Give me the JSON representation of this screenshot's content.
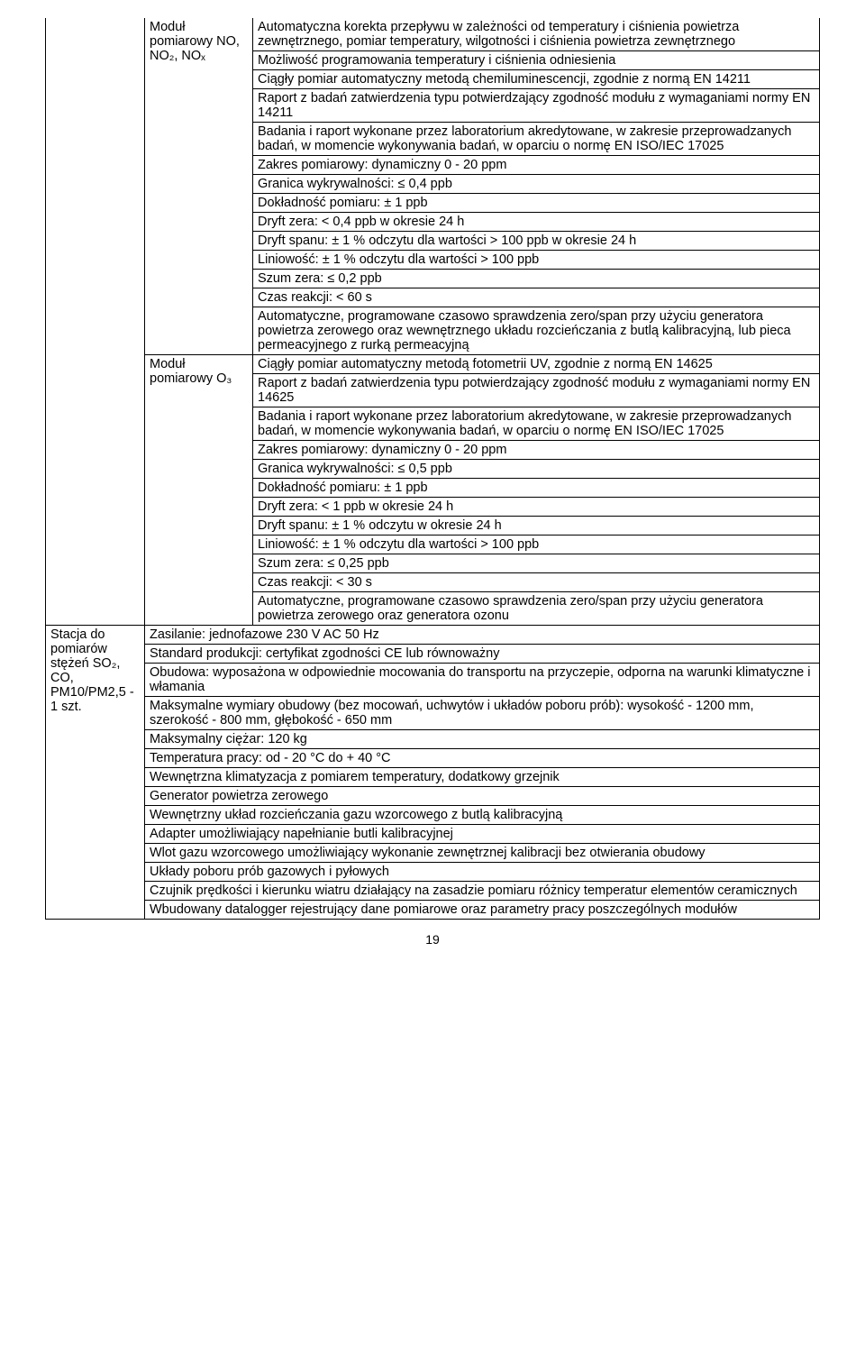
{
  "module_no": {
    "label_line1": "Moduł",
    "label_line2": "pomiarowy NO,",
    "label_line3": "NO₂, NOₓ",
    "rows": [
      "Automatyczna korekta przepływu w zależności od temperatury i ciśnienia powietrza zewnętrznego, pomiar temperatury, wilgotności i ciśnienia powietrza zewnętrznego",
      "Możliwość programowania temperatury i ciśnienia odniesienia",
      "Ciągły pomiar automatyczny metodą chemiluminescencji, zgodnie z normą EN 14211",
      "Raport z badań zatwierdzenia typu potwierdzający zgodność modułu z wymaganiami normy EN 14211",
      "Badania i raport wykonane przez laboratorium akredytowane, w zakresie przeprowadzanych badań, w momencie wykonywania badań, w oparciu o normę EN ISO/IEC 17025",
      "Zakres pomiarowy: dynamiczny 0 - 20 ppm",
      "Granica wykrywalności: ≤ 0,4 ppb",
      "Dokładność pomiaru: ± 1 ppb",
      "Dryft zera: < 0,4 ppb w okresie 24 h",
      "Dryft spanu: ± 1 % odczytu dla wartości > 100 ppb w okresie 24 h",
      "Liniowość: ± 1 %  odczytu dla wartości  > 100 ppb",
      "Szum zera: ≤ 0,2 ppb",
      "Czas reakcji: < 60 s",
      "Automatyczne, programowane czasowo sprawdzenia zero/span przy użyciu generatora powietrza zerowego oraz wewnętrznego układu rozcieńczania z butlą kalibracyjną, lub pieca permeacyjnego z rurką permeacyjną"
    ]
  },
  "module_o3": {
    "label_line1": "Moduł",
    "label_line2": "pomiarowy O₃",
    "rows": [
      "Ciągły pomiar automatyczny metodą fotometrii UV, zgodnie z normą EN 14625",
      "Raport z badań zatwierdzenia typu potwierdzający zgodność modułu z wymaganiami normy EN 14625",
      "Badania i raport wykonane przez laboratorium akredytowane, w zakresie przeprowadzanych badań, w momencie wykonywania badań, w oparciu o normę EN ISO/IEC 17025",
      "Zakres pomiarowy: dynamiczny 0 - 20 ppm",
      "Granica wykrywalności: ≤ 0,5 ppb",
      "Dokładność pomiaru: ± 1 ppb",
      "Dryft zera: < 1 ppb w okresie 24 h",
      "Dryft spanu: ± 1 % odczytu  w okresie 24 h",
      "Liniowość: ± 1 %  odczytu dla wartości  > 100 ppb",
      "Szum zera: ≤ 0,25 ppb",
      "Czas reakcji: < 30 s",
      "Automatyczne, programowane czasowo sprawdzenia zero/span przy użyciu generatora powietrza zerowego oraz generatora ozonu"
    ]
  },
  "station": {
    "label_line1": "Stacja do",
    "label_line2": "pomiarów",
    "label_line3": "stężeń SO₂,",
    "label_line4": "CO,",
    "label_line5": "PM10/PM2,5 -",
    "label_line6": "1 szt.",
    "rows": [
      "Zasilanie: jednofazowe 230 V AC 50 Hz",
      "Standard produkcji: certyfikat zgodności CE lub równoważny",
      "Obudowa: wyposażona w odpowiednie mocowania do transportu na przyczepie, odporna na warunki klimatyczne i włamania",
      "Maksymalne wymiary obudowy (bez mocowań, uchwytów i układów poboru prób): wysokość - 1200 mm, szerokość - 800 mm, głębokość - 650 mm",
      "Maksymalny ciężar: 120 kg",
      "Temperatura pracy: od - 20 °C do + 40 °C",
      "Wewnętrzna klimatyzacja z pomiarem temperatury, dodatkowy grzejnik",
      "Generator powietrza zerowego",
      "Wewnętrzny układ rozcieńczania gazu wzorcowego z butlą kalibracyjną",
      "Adapter umożliwiający napełnianie butli kalibracyjnej",
      "Wlot gazu wzorcowego umożliwiający wykonanie zewnętrznej kalibracji bez otwierania obudowy",
      "Układy poboru prób gazowych i pyłowych",
      "Czujnik prędkości i kierunku wiatru działający na zasadzie pomiaru różnicy temperatur elementów ceramicznych",
      "Wbudowany datalogger rejestrujący dane pomiarowe oraz parametry pracy poszczególnych modułów"
    ]
  },
  "page_number": "19"
}
